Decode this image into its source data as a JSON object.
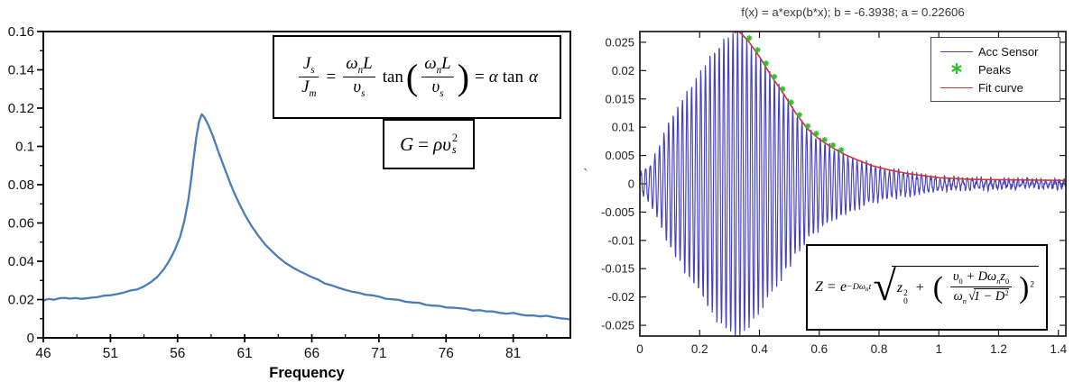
{
  "page": {
    "background": "#ffffff"
  },
  "artifact": {
    "glyph": "`"
  },
  "formulas": {
    "box1": {
      "f1n_sym": "J",
      "f1n_sub": "s",
      "f1d_sym": "J",
      "f1d_sub": "m",
      "eq1": "=",
      "f2n_a": "ω",
      "f2n_asub": "n",
      "f2n_b": "L",
      "f2d_a": "υ",
      "f2d_asub": "s",
      "tan": "tan",
      "lparen": "(",
      "rparen": ")",
      "f3n_a": "ω",
      "f3n_asub": "n",
      "f3n_b": "L",
      "f3d_a": "υ",
      "f3d_asub": "s",
      "eq2": "=",
      "alpha1": "α",
      "tan2": "tan",
      "alpha2": "α"
    },
    "box2": {
      "G": "G",
      "eq": "=",
      "rho": "ρ",
      "u": "υ",
      "sub": "s",
      "sup": "2"
    },
    "box3": {
      "Z": "Z",
      "eq": "=",
      "e": "e",
      "exp1": "−Dω",
      "exp_sub": "n",
      "exp_t": "t",
      "rad": "√",
      "z": "z",
      "z_sub": "0",
      "z_sup": "2",
      "plus": "+",
      "lparen": "(",
      "rparen": ")",
      "fn_a": "υ",
      "fn_asub": "0",
      "fn_b": "+ Dω",
      "fn_bsub": "n",
      "fn_c": "z",
      "fn_csub": "0",
      "fd_a": "ω",
      "fd_asub": "n",
      "fd_rad": "√",
      "fd_b": "1 − D",
      "fd_bsup": "2",
      "outer_sup": "2"
    }
  },
  "chart_data": [
    {
      "type": "line",
      "panel": "left",
      "title": "",
      "xlabel": "Frequency",
      "ylabel": "",
      "grid": false,
      "xlim": [
        46,
        85.26
      ],
      "ylim": [
        0,
        0.16
      ],
      "x_ticks": [
        46,
        51,
        56,
        61,
        66,
        71,
        76,
        81
      ],
      "x_tick_labels": [
        "46",
        "51",
        "56",
        "61",
        "66",
        "71",
        "76",
        "81"
      ],
      "y_ticks": [
        0,
        0.02,
        0.04,
        0.06,
        0.08,
        0.1,
        0.12,
        0.14,
        0.16
      ],
      "y_tick_labels": [
        "0",
        "0.02",
        "0.04",
        "0.06",
        "0.08",
        "0.1",
        "0.12",
        "0.14",
        "0.16"
      ],
      "series": [
        {
          "name": "frequency-response",
          "color": "#4a7db8",
          "points": [
            [
              46.0,
              0.0197
            ],
            [
              46.4,
              0.0203
            ],
            [
              46.8,
              0.0196
            ],
            [
              47.2,
              0.0205
            ],
            [
              47.6,
              0.021
            ],
            [
              48.0,
              0.0202
            ],
            [
              48.4,
              0.0207
            ],
            [
              48.8,
              0.0204
            ],
            [
              49.2,
              0.021
            ],
            [
              49.6,
              0.0208
            ],
            [
              50.0,
              0.0215
            ],
            [
              50.5,
              0.0218
            ],
            [
              51.0,
              0.0222
            ],
            [
              51.5,
              0.0227
            ],
            [
              52.0,
              0.0235
            ],
            [
              52.5,
              0.0244
            ],
            [
              53.0,
              0.0256
            ],
            [
              53.5,
              0.027
            ],
            [
              54.0,
              0.0292
            ],
            [
              54.5,
              0.032
            ],
            [
              55.0,
              0.036
            ],
            [
              55.4,
              0.0405
            ],
            [
              55.8,
              0.046
            ],
            [
              56.2,
              0.053
            ],
            [
              56.5,
              0.061
            ],
            [
              56.8,
              0.072
            ],
            [
              57.0,
              0.082
            ],
            [
              57.2,
              0.094
            ],
            [
              57.4,
              0.105
            ],
            [
              57.6,
              0.113
            ],
            [
              57.8,
              0.1168
            ],
            [
              58.0,
              0.1152
            ],
            [
              58.3,
              0.111
            ],
            [
              58.6,
              0.106
            ],
            [
              59.0,
              0.098
            ],
            [
              59.4,
              0.0905
            ],
            [
              59.8,
              0.083
            ],
            [
              60.2,
              0.076
            ],
            [
              60.6,
              0.07
            ],
            [
              61.0,
              0.0645
            ],
            [
              61.5,
              0.0585
            ],
            [
              62.0,
              0.0535
            ],
            [
              62.5,
              0.0492
            ],
            [
              63.0,
              0.0455
            ],
            [
              63.5,
              0.0422
            ],
            [
              64.0,
              0.0394
            ],
            [
              64.5,
              0.037
            ],
            [
              65.0,
              0.0349
            ],
            [
              65.5,
              0.0331
            ],
            [
              66.0,
              0.0314
            ],
            [
              66.5,
              0.0299
            ],
            [
              67.0,
              0.0286
            ],
            [
              67.5,
              0.0274
            ],
            [
              68.0,
              0.0263
            ],
            [
              68.5,
              0.0253
            ],
            [
              69.0,
              0.0244
            ],
            [
              69.5,
              0.0236
            ],
            [
              70.0,
              0.0228
            ],
            [
              70.5,
              0.0221
            ],
            [
              71.0,
              0.0214
            ],
            [
              71.5,
              0.0208
            ],
            [
              72.0,
              0.0202
            ],
            [
              72.5,
              0.0196
            ],
            [
              73.0,
              0.019
            ],
            [
              73.5,
              0.0185
            ],
            [
              74.0,
              0.018
            ],
            [
              74.5,
              0.0175
            ],
            [
              75.0,
              0.017
            ],
            [
              75.5,
              0.0166
            ],
            [
              76.0,
              0.0161
            ],
            [
              76.5,
              0.0157
            ],
            [
              77.0,
              0.0153
            ],
            [
              77.5,
              0.0149
            ],
            [
              78.0,
              0.0146
            ],
            [
              78.5,
              0.0142
            ],
            [
              79.0,
              0.0139
            ],
            [
              79.5,
              0.0135
            ],
            [
              80.0,
              0.0132
            ],
            [
              80.5,
              0.0129
            ],
            [
              81.0,
              0.0126
            ],
            [
              81.5,
              0.0123
            ],
            [
              82.0,
              0.012
            ],
            [
              82.5,
              0.0117
            ],
            [
              83.0,
              0.0115
            ],
            [
              83.5,
              0.0112
            ],
            [
              84.0,
              0.0108
            ],
            [
              84.5,
              0.0104
            ],
            [
              85.0,
              0.0099
            ],
            [
              85.26,
              0.0096
            ]
          ]
        }
      ]
    },
    {
      "type": "line",
      "panel": "right",
      "title": "f(x) = a*exp(b*x); b = -6.3938; a = 0.22606",
      "xlabel": "",
      "ylabel": "",
      "grid": false,
      "xlim": [
        0,
        1.425
      ],
      "ylim": [
        -0.0269,
        0.0269
      ],
      "x_ticks": [
        0,
        0.2,
        0.4,
        0.6,
        0.8,
        1,
        1.2,
        1.4
      ],
      "x_tick_labels": [
        "0",
        "0.2",
        "0.4",
        "0.6",
        "0.8",
        "1",
        "1.2",
        "1.4"
      ],
      "y_ticks": [
        0.025,
        0.02,
        0.015,
        0.01,
        0.005,
        0,
        -0.005,
        -0.01,
        -0.015,
        -0.02,
        -0.025
      ],
      "y_tick_labels": [
        "0.025",
        "0.02",
        "0.015",
        "0.01",
        "0.005",
        "0",
        "-0.005",
        "-0.01",
        "-0.015",
        "-0.02",
        "-0.025"
      ],
      "signal": {
        "name": "Acc Sensor",
        "color": "#4340c2",
        "freq_hz": 65,
        "noise_amp": 0.0011,
        "envelope": [
          [
            0,
            0.0018
          ],
          [
            0.03,
            0.0032
          ],
          [
            0.06,
            0.006
          ],
          [
            0.1,
            0.0113
          ],
          [
            0.15,
            0.0155
          ],
          [
            0.2,
            0.0195
          ],
          [
            0.25,
            0.0237
          ],
          [
            0.3,
            0.0267
          ],
          [
            0.33,
            0.0274
          ],
          [
            0.36,
            0.0258
          ],
          [
            0.4,
            0.0228
          ],
          [
            0.44,
            0.0193
          ],
          [
            0.48,
            0.0162
          ],
          [
            0.52,
            0.0128
          ],
          [
            0.56,
            0.0099
          ],
          [
            0.6,
            0.008
          ],
          [
            0.64,
            0.0066
          ],
          [
            0.68,
            0.0054
          ],
          [
            0.73,
            0.0042
          ],
          [
            0.78,
            0.0032
          ],
          [
            0.84,
            0.0024
          ],
          [
            0.9,
            0.0018
          ],
          [
            1.0,
            0.0011
          ],
          [
            1.1,
            0.0008
          ],
          [
            1.25,
            0.0007
          ],
          [
            1.425,
            0.0006
          ]
        ]
      },
      "peaks": {
        "name": "Peaks",
        "color": "#2fbf2f",
        "marker_glyph": "∗",
        "t_start": 0.338,
        "t_end": 0.676,
        "spacing": 0.028
      },
      "fit": {
        "name": "Fit curve",
        "color": "#d03434",
        "a": 0.22606,
        "b": -6.3938,
        "t_start": 0.316
      },
      "legend": {
        "position": "top-right",
        "items": [
          {
            "label": "Acc Sensor"
          },
          {
            "label": "Peaks"
          },
          {
            "label": "Fit curve"
          }
        ]
      }
    }
  ]
}
